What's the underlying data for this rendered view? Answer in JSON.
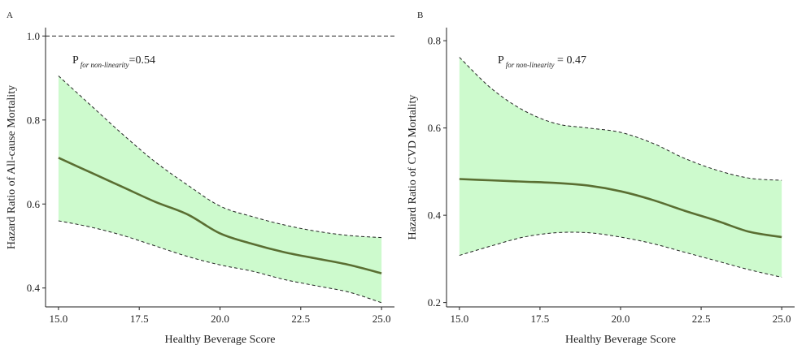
{
  "chart_data": [
    {
      "type": "line",
      "panel_label": "A",
      "xlabel": "Healthy Beverage Score",
      "ylabel": "Hazard Ratio of All-cause Mortality",
      "xlim": [
        14.6,
        25.4
      ],
      "ylim": [
        0.355,
        1.02
      ],
      "x_ticks": [
        "15.0",
        "17.5",
        "20.0",
        "22.5",
        "25.0"
      ],
      "y_ticks": [
        "0.4",
        "0.6",
        "0.8",
        "1.0"
      ],
      "reference_line": 1.0,
      "annotation": {
        "main": "P",
        "sub": "for non-linearity",
        "value": "=0.54"
      },
      "x": [
        15,
        16,
        17,
        18,
        19,
        20,
        21,
        22,
        23,
        24,
        25
      ],
      "series": [
        {
          "role": "estimate",
          "values": [
            0.71,
            0.675,
            0.64,
            0.605,
            0.575,
            0.53,
            0.505,
            0.485,
            0.47,
            0.455,
            0.435
          ]
        },
        {
          "role": "upper",
          "values": [
            0.905,
            0.835,
            0.765,
            0.7,
            0.645,
            0.595,
            0.57,
            0.55,
            0.535,
            0.525,
            0.52
          ]
        },
        {
          "role": "lower",
          "values": [
            0.56,
            0.545,
            0.525,
            0.5,
            0.475,
            0.455,
            0.44,
            0.42,
            0.405,
            0.39,
            0.365
          ]
        }
      ],
      "colors": {
        "line": "#5a6e32",
        "band": "#cdfacd",
        "bound": "#222222"
      }
    },
    {
      "type": "line",
      "panel_label": "B",
      "xlabel": "Healthy Beverage Score",
      "ylabel": "Hazard Ratio of CVD Mortality",
      "xlim": [
        14.6,
        25.4
      ],
      "ylim": [
        0.19,
        0.83
      ],
      "x_ticks": [
        "15.0",
        "17.5",
        "20.0",
        "22.5",
        "25.0"
      ],
      "y_ticks": [
        "0.2",
        "0.4",
        "0.6",
        "0.8"
      ],
      "annotation": {
        "main": "P",
        "sub": "for non-linearity",
        "value": " = 0.47"
      },
      "x": [
        15,
        16,
        17,
        18,
        19,
        20,
        21,
        22,
        23,
        24,
        25
      ],
      "series": [
        {
          "role": "estimate",
          "values": [
            0.483,
            0.48,
            0.477,
            0.474,
            0.468,
            0.455,
            0.435,
            0.41,
            0.387,
            0.362,
            0.35
          ]
        },
        {
          "role": "upper",
          "values": [
            0.762,
            0.69,
            0.64,
            0.61,
            0.6,
            0.59,
            0.565,
            0.53,
            0.503,
            0.485,
            0.48
          ]
        },
        {
          "role": "lower",
          "values": [
            0.308,
            0.33,
            0.35,
            0.36,
            0.36,
            0.35,
            0.335,
            0.315,
            0.295,
            0.275,
            0.258
          ]
        }
      ],
      "colors": {
        "line": "#5a6e32",
        "band": "#cdfacd",
        "bound": "#222222"
      }
    }
  ]
}
